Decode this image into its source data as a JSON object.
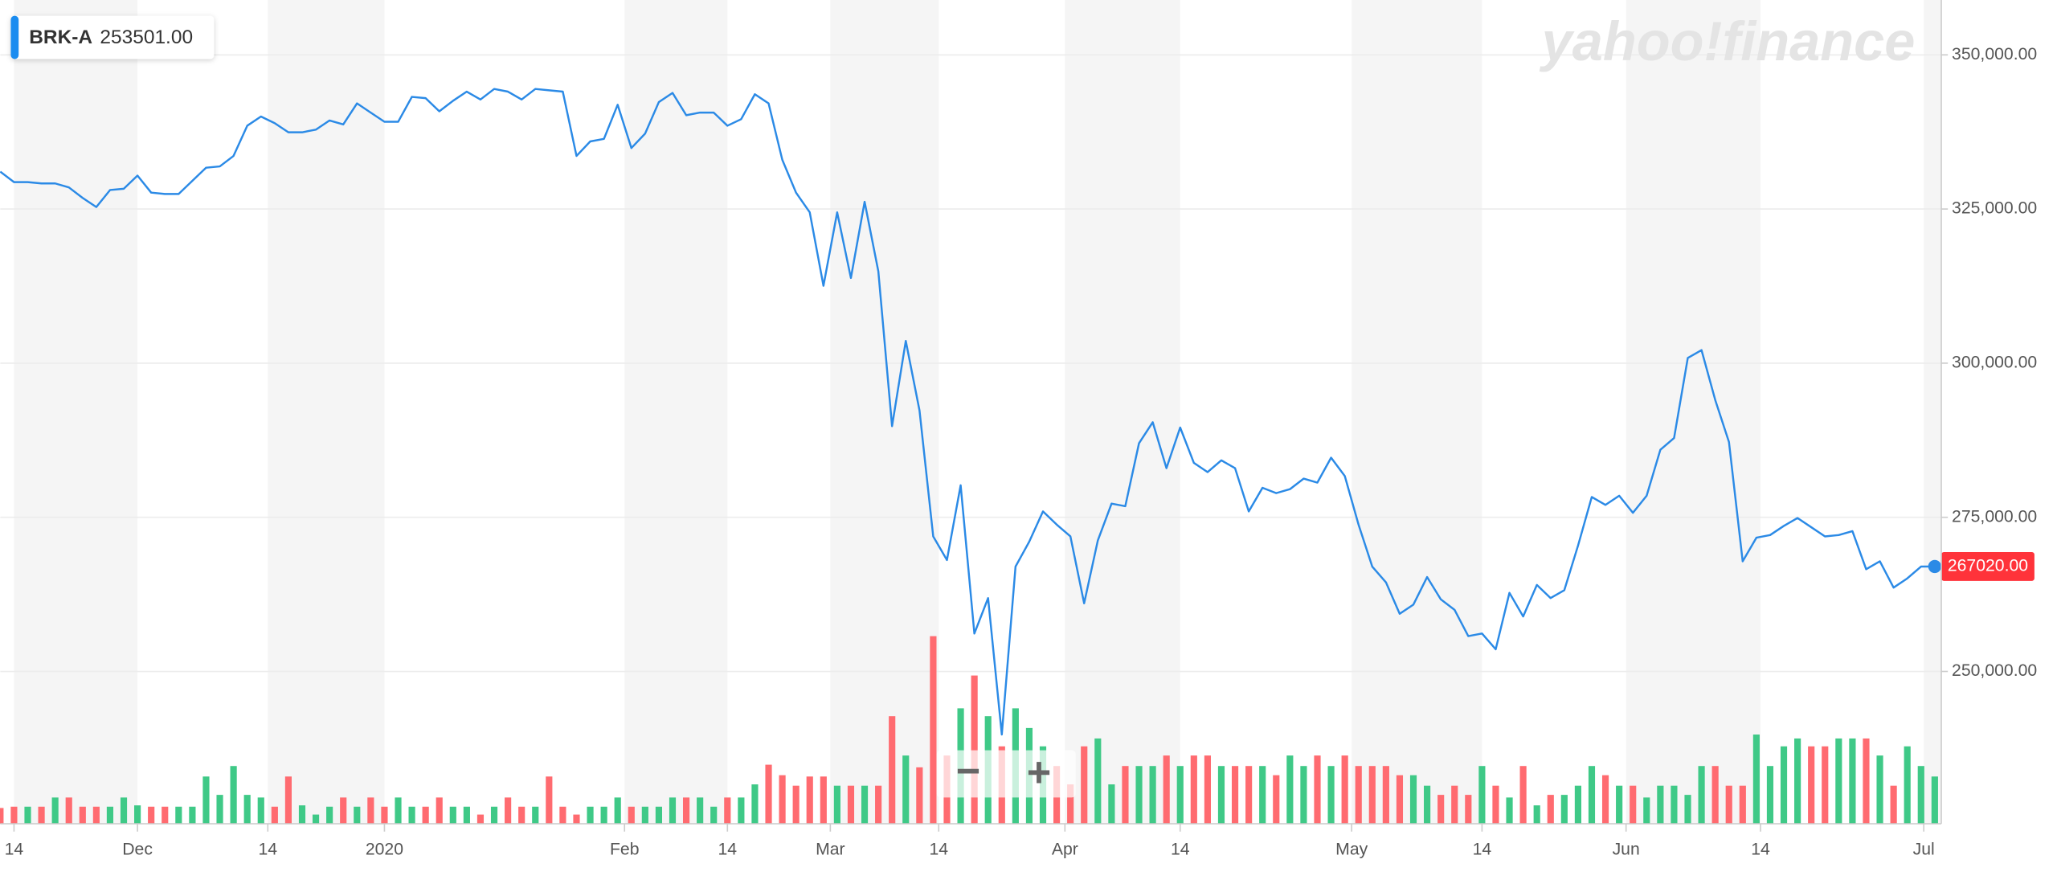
{
  "chart_data": {
    "type": "line",
    "price_label": "253501.00",
    "watermark": "yahoo!finance",
    "last_value_label": "267020.00",
    "zoom_controls": [
      "−",
      "+"
    ],
    "grid": true,
    "xlim": [
      0,
      141
    ],
    "ylim": [
      225300,
      358900
    ],
    "y2lim": [
      0,
      6280
    ],
    "yticks": [
      {
        "value": 250000,
        "label": "250,000.00"
      },
      {
        "value": 275000,
        "label": "275,000.00"
      },
      {
        "value": 300000,
        "label": "300,000.00"
      },
      {
        "value": 325000,
        "label": "325,000.00"
      },
      {
        "value": 350000,
        "label": "350,000.00"
      }
    ],
    "xticks": [
      {
        "value": 1,
        "label": "14"
      },
      {
        "value": 10,
        "label": "Dec"
      },
      {
        "value": 19.5,
        "label": "14"
      },
      {
        "value": 28,
        "label": "2020"
      },
      {
        "value": 45.5,
        "label": "Feb"
      },
      {
        "value": 53,
        "label": "14"
      },
      {
        "value": 60.5,
        "label": "Mar"
      },
      {
        "value": 68.4,
        "label": "14"
      },
      {
        "value": 77.6,
        "label": "Apr"
      },
      {
        "value": 86,
        "label": "14"
      },
      {
        "value": 98.5,
        "label": "May"
      },
      {
        "value": 108,
        "label": "14"
      },
      {
        "value": 118.5,
        "label": "Jun"
      },
      {
        "value": 128.3,
        "label": "14"
      },
      {
        "value": 140.2,
        "label": "Jul"
      }
    ],
    "series": [
      {
        "name": "BRK-A",
        "color": "#2b8ae6",
        "values": [
          331060,
          329360,
          329360,
          329150,
          329150,
          328510,
          326800,
          325320,
          328080,
          328290,
          330420,
          327660,
          327440,
          327440,
          329570,
          331700,
          331910,
          333610,
          338510,
          340000,
          338930,
          337440,
          337440,
          337870,
          339360,
          338720,
          342130,
          340640,
          339150,
          339150,
          343190,
          342980,
          340850,
          342550,
          344040,
          342760,
          344470,
          344040,
          342760,
          344470,
          344250,
          344040,
          333610,
          335960,
          336380,
          341910,
          334890,
          337230,
          342340,
          343830,
          340210,
          340640,
          340640,
          338510,
          339570,
          343620,
          342130,
          332980,
          327660,
          324460,
          312550,
          324460,
          313820,
          326170,
          314890,
          289780,
          303610,
          292330,
          271900,
          268070,
          280200,
          256150,
          261900,
          239770,
          267010,
          271050,
          275950,
          273820,
          271900,
          261050,
          271260,
          277220,
          276800,
          287010,
          290420,
          282970,
          289560,
          283820,
          282330,
          284240,
          282970,
          275950,
          279780,
          278920,
          279560,
          281270,
          280630,
          284670,
          281690,
          273820,
          267010,
          264450,
          259350,
          260840,
          265310,
          261690,
          259990,
          255730,
          256150,
          253600,
          262750,
          258920,
          264030,
          261900,
          263180,
          270410,
          278290,
          277010,
          278500,
          275730,
          278500,
          285950,
          287860,
          300840,
          302120,
          294030,
          287220,
          267860,
          271690,
          272120,
          273600,
          274880,
          273390,
          271900,
          272120,
          272750,
          266580,
          267860,
          263600,
          265090,
          267010,
          267020
        ]
      },
      {
        "type": "bar",
        "axis": "y2",
        "up_color": "#3fc987",
        "down_color": "#ff6b70",
        "values": [
          120,
          130,
          130,
          130,
          200,
          200,
          130,
          130,
          130,
          200,
          140,
          130,
          130,
          130,
          130,
          360,
          220,
          440,
          220,
          200,
          130,
          360,
          140,
          70,
          130,
          200,
          130,
          200,
          130,
          200,
          130,
          130,
          200,
          130,
          130,
          70,
          130,
          200,
          130,
          130,
          360,
          130,
          70,
          130,
          130,
          200,
          130,
          130,
          130,
          200,
          200,
          200,
          130,
          200,
          200,
          300,
          450,
          370,
          290,
          360,
          360,
          290,
          290,
          290,
          290,
          820,
          520,
          430,
          1430,
          520,
          880,
          1130,
          820,
          590,
          880,
          730,
          590,
          440,
          300,
          590,
          650,
          300,
          440,
          440,
          440,
          520,
          440,
          520,
          520,
          440,
          440,
          440,
          440,
          370,
          520,
          440,
          520,
          440,
          520,
          440,
          440,
          440,
          370,
          370,
          290,
          220,
          290,
          220,
          440,
          290,
          200,
          440,
          140,
          220,
          220,
          290,
          440,
          370,
          290,
          290,
          200,
          290,
          290,
          220,
          440,
          440,
          290,
          290,
          680,
          440,
          590,
          650,
          590,
          590,
          650,
          650,
          650,
          520,
          290,
          590,
          440,
          360
        ]
      }
    ]
  }
}
